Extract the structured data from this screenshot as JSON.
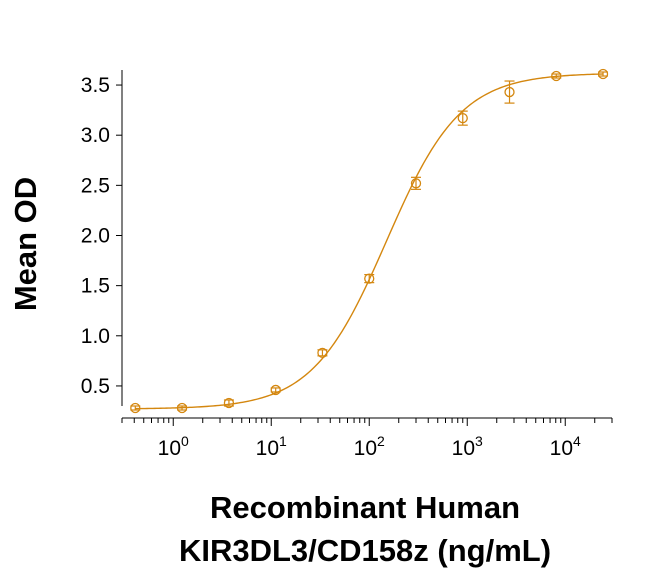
{
  "chart_data": {
    "type": "scatter",
    "title": "",
    "xlabel_lines": [
      "Recombinant Human",
      "KIR3DL3/CD158z (ng/mL)"
    ],
    "ylabel": "Mean OD",
    "x_scale": "log",
    "xlim": [
      0.3,
      30000
    ],
    "ylim": [
      0.3,
      3.65
    ],
    "x_tick_labels": [
      {
        "base": "10",
        "exp": "0",
        "value": 1
      },
      {
        "base": "10",
        "exp": "1",
        "value": 10
      },
      {
        "base": "10",
        "exp": "2",
        "value": 100
      },
      {
        "base": "10",
        "exp": "3",
        "value": 1000
      },
      {
        "base": "10",
        "exp": "4",
        "value": 10000
      }
    ],
    "y_ticks": [
      {
        "label": "0.5",
        "value": 0.5
      },
      {
        "label": "1.0",
        "value": 1.0
      },
      {
        "label": "1.5",
        "value": 1.5
      },
      {
        "label": "2.0",
        "value": 2.0
      },
      {
        "label": "2.5",
        "value": 2.5
      },
      {
        "label": "3.0",
        "value": 3.0
      },
      {
        "label": "3.5",
        "value": 3.5
      }
    ],
    "grid": false,
    "color": "#D4870F",
    "series": [
      {
        "points": [
          {
            "x": 0.41,
            "y": 0.28,
            "err": 0.02
          },
          {
            "x": 1.23,
            "y": 0.28,
            "err": 0.02
          },
          {
            "x": 3.7,
            "y": 0.33,
            "err": 0.03
          },
          {
            "x": 11.1,
            "y": 0.46,
            "err": 0.02
          },
          {
            "x": 33.3,
            "y": 0.83,
            "err": 0.03
          },
          {
            "x": 100,
            "y": 1.57,
            "err": 0.04
          },
          {
            "x": 300,
            "y": 2.52,
            "err": 0.06
          },
          {
            "x": 900,
            "y": 3.17,
            "err": 0.07
          },
          {
            "x": 2700,
            "y": 3.43,
            "err": 0.11
          },
          {
            "x": 8100,
            "y": 3.59,
            "err": 0.02
          },
          {
            "x": 24300,
            "y": 3.61,
            "err": 0.02
          }
        ],
        "fit": {
          "bottom": 0.27,
          "top": 3.62,
          "ec50": 150,
          "hill": 1.15
        }
      }
    ]
  }
}
